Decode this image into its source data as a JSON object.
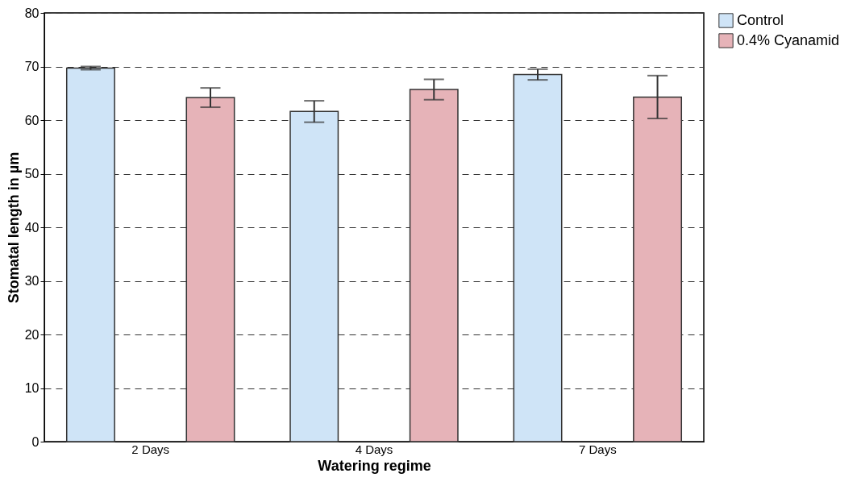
{
  "chart_data": {
    "type": "bar",
    "xlabel": "Watering regime",
    "ylabel": "Stomatal length in µm",
    "categories": [
      "2 Days",
      "4 Days",
      "7 Days"
    ],
    "series": [
      {
        "name": "Control",
        "color": "#cfe4f7",
        "values": [
          69.7,
          61.6,
          68.5
        ],
        "errors": [
          0.3,
          2.0,
          1.0
        ]
      },
      {
        "name": "0.4% Cyanamid",
        "color": "#e6b3b8",
        "values": [
          64.2,
          65.7,
          64.3
        ],
        "errors": [
          1.8,
          1.9,
          4.0
        ]
      }
    ],
    "ylim": [
      0,
      80
    ],
    "yticks": [
      0,
      10,
      20,
      30,
      40,
      50,
      60,
      70,
      80
    ],
    "grid": "y",
    "legend": "top right"
  }
}
